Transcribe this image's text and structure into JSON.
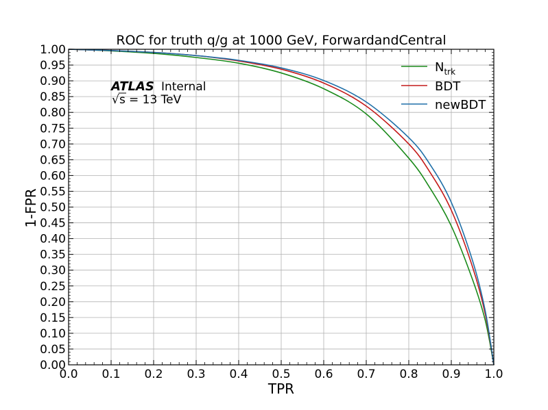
{
  "chart_data": {
    "type": "line",
    "title": "ROC for truth q/g at 1000 GeV, ForwardandCentral",
    "xlabel": "TPR",
    "ylabel": "1-FPR",
    "xlim": [
      0.0,
      1.0
    ],
    "ylim": [
      0.0,
      1.0
    ],
    "x_ticks": [
      "0.0",
      "0.1",
      "0.2",
      "0.3",
      "0.4",
      "0.5",
      "0.6",
      "0.7",
      "0.8",
      "0.9",
      "1.0"
    ],
    "y_ticks": [
      "0.00",
      "0.05",
      "0.10",
      "0.15",
      "0.20",
      "0.25",
      "0.30",
      "0.35",
      "0.40",
      "0.45",
      "0.50",
      "0.55",
      "0.60",
      "0.65",
      "0.70",
      "0.75",
      "0.80",
      "0.85",
      "0.90",
      "0.95",
      "1.00"
    ],
    "grid": true,
    "legend_position": "top-right",
    "annotation": {
      "experiment": "ATLAS",
      "status": "Internal",
      "energy_prefix": "s",
      "energy_value": "= 13 TeV"
    },
    "series": [
      {
        "name": "N",
        "name_sub": "trk",
        "color": "#1a8a1a",
        "x": [
          0.0,
          0.05,
          0.1,
          0.2,
          0.3,
          0.4,
          0.5,
          0.6,
          0.7,
          0.8,
          0.85,
          0.9,
          0.95,
          0.98,
          1.0
        ],
        "y": [
          1.0,
          0.998,
          0.995,
          0.987,
          0.974,
          0.956,
          0.925,
          0.875,
          0.795,
          0.655,
          0.56,
          0.44,
          0.27,
          0.14,
          0.0
        ]
      },
      {
        "name": "BDT",
        "color": "#c41a1a",
        "x": [
          0.0,
          0.05,
          0.1,
          0.2,
          0.3,
          0.4,
          0.5,
          0.6,
          0.7,
          0.8,
          0.85,
          0.9,
          0.95,
          0.98,
          1.0
        ],
        "y": [
          1.0,
          0.998,
          0.996,
          0.99,
          0.98,
          0.963,
          0.937,
          0.893,
          0.82,
          0.7,
          0.61,
          0.49,
          0.31,
          0.16,
          0.0
        ]
      },
      {
        "name": "newBDT",
        "color": "#1f6fa8",
        "x": [
          0.0,
          0.05,
          0.1,
          0.2,
          0.3,
          0.4,
          0.5,
          0.6,
          0.7,
          0.8,
          0.85,
          0.9,
          0.95,
          0.98,
          1.0
        ],
        "y": [
          1.0,
          0.998,
          0.996,
          0.99,
          0.98,
          0.965,
          0.941,
          0.901,
          0.833,
          0.72,
          0.635,
          0.515,
          0.33,
          0.17,
          0.0
        ]
      }
    ]
  }
}
